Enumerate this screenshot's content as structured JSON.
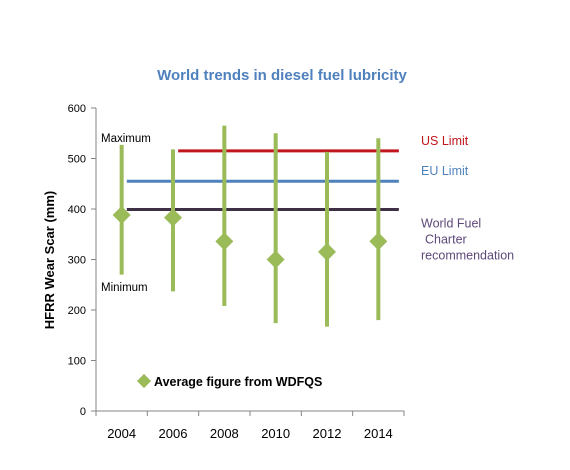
{
  "chart_data": {
    "type": "line",
    "title": "World trends in diesel fuel lubricity",
    "ylabel": "HFRR Wear Scar (mm)",
    "xlabel": "",
    "ylim": [
      0,
      600
    ],
    "yticks": [
      "0",
      "100",
      "200",
      "300",
      "400",
      "500",
      "600"
    ],
    "categories": [
      "2004",
      "2006",
      "2008",
      "2010",
      "2012",
      "2014"
    ],
    "ranges": [
      {
        "x": 2004.0,
        "min": 270,
        "max": 527,
        "avg": 388
      },
      {
        "x": 2006.0,
        "min": 237,
        "max": 518,
        "avg": 383
      },
      {
        "x": 2008.0,
        "min": 208,
        "max": 565,
        "avg": 336
      },
      {
        "x": 2010.0,
        "min": 174,
        "max": 550,
        "avg": 300
      },
      {
        "x": 2012.0,
        "min": 167,
        "max": 513,
        "avg": 315
      },
      {
        "x": 2014.0,
        "min": 180,
        "max": 540,
        "avg": 336
      }
    ],
    "limits": [
      {
        "name": "US Limit",
        "value": 515,
        "color": "#c0161d",
        "x_start": 2006.2,
        "x_end": 2014.8
      },
      {
        "name": "EU Limit",
        "value": 455,
        "color": "#4f81bd",
        "x_start": 2004.2,
        "x_end": 2014.8
      },
      {
        "name": "World Fuel Charter recommendation",
        "lines": [
          "World Fuel",
          "Charter",
          "recommendation"
        ],
        "value": 399,
        "color": "#3f3145",
        "x_start": 2004.2,
        "x_end": 2014.8
      }
    ],
    "annotations": {
      "maximum": "Maximum",
      "minimum": "Minimum"
    },
    "legend": {
      "label": "Average figure from WDFQS"
    },
    "colors": {
      "range_bar": "#9bbb59",
      "title": "#4f81bd",
      "wfc_label": "#5f497a",
      "axis": "#868686"
    },
    "grid": false
  }
}
